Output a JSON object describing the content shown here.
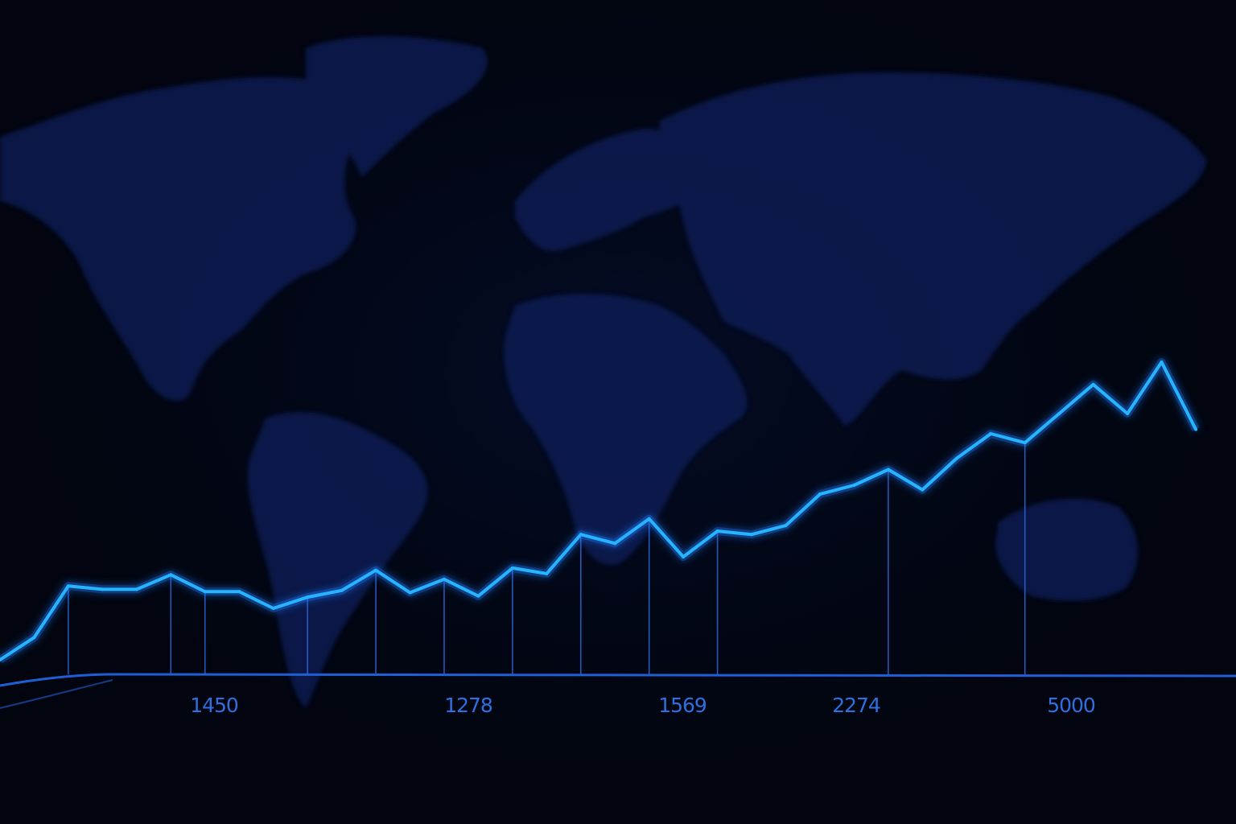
{
  "colors": {
    "background": "#02050f",
    "map": "#0a1a55",
    "line": "#27b4ff",
    "line_glow": "#1a7dff",
    "drop_lines": "#2a6ce0",
    "baseline": "#1f5fd6",
    "tick_text": "#2f6fe0"
  },
  "chart_data": {
    "type": "line",
    "title": "",
    "xlabel": "",
    "ylabel": "",
    "tick_labels": [
      "1450",
      "1278",
      "1569",
      "2274",
      "5000"
    ],
    "background": "world-map",
    "series": [
      {
        "values": [
          0.0,
          10.0,
          33.0,
          31.5,
          31.5,
          38.0,
          30.5,
          30.5,
          23.0,
          28.0,
          31.0,
          40.0,
          30.0,
          36.0,
          28.5,
          41.0,
          38.5,
          56.0,
          52.0,
          63.0,
          46.0,
          57.5,
          56.0,
          60.0,
          74.0,
          78.0,
          85.0,
          76.0,
          90.0,
          101.0,
          97.0,
          110.0,
          123.0,
          110.0,
          133.0,
          103.0
        ]
      }
    ],
    "drop_lines_at_points": [
      2,
      5,
      6,
      9,
      11,
      13,
      15,
      17,
      19,
      21,
      26,
      30
    ],
    "grid": false,
    "legend": "none"
  }
}
